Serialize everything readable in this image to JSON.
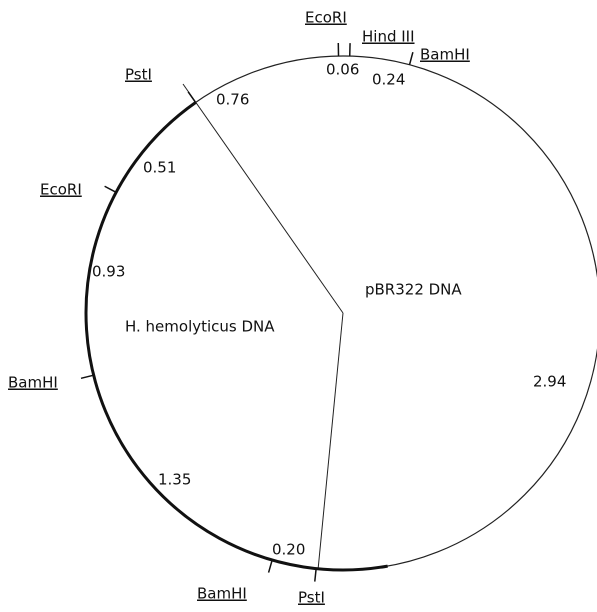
{
  "sites": [
    {
      "label": "EcoRI"
    },
    {
      "label": "Hind III"
    },
    {
      "label": "BamHI"
    },
    {
      "label": "PstI"
    },
    {
      "label": "EcoRI"
    },
    {
      "label": "BamHI"
    },
    {
      "label": "BamHI"
    },
    {
      "label": "PstI"
    }
  ],
  "fragments": [
    {
      "label": "0.06"
    },
    {
      "label": "0.24"
    },
    {
      "label": "0.76"
    },
    {
      "label": "0.51"
    },
    {
      "label": "0.93"
    },
    {
      "label": "1.35"
    },
    {
      "label": "0.20"
    },
    {
      "label": "2.94"
    }
  ],
  "regions": [
    {
      "label": "pBR322 DNA"
    },
    {
      "label": "H. hemolyticus DNA"
    }
  ]
}
